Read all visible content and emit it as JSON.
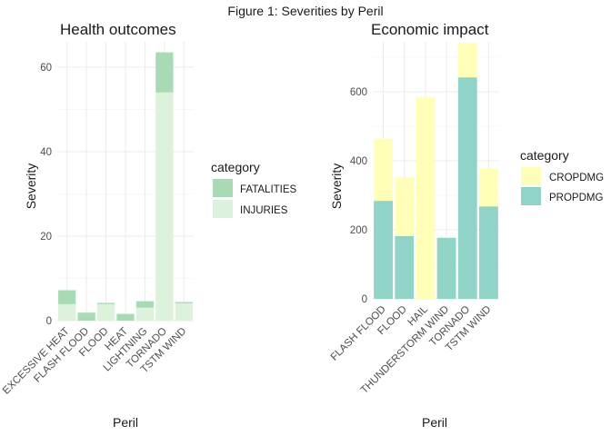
{
  "figure_title": "Figure 1: Severities by Peril",
  "colors": {
    "fatalities": "#a8dbb4",
    "injuries": "#ddf2dc",
    "cropdmg": "#ffffb8",
    "propdmg": "#8fd4c6"
  },
  "chart_data": [
    {
      "type": "bar",
      "stacked": true,
      "title": "Health outcomes",
      "xlabel": "Peril",
      "ylabel": "Severity",
      "categories": [
        "EXCESSIVE HEAT",
        "FLASH FLOOD",
        "FLOOD",
        "HEAT",
        "LIGHTNING",
        "TORNADO",
        "TSTM WIND"
      ],
      "series": [
        {
          "name": "FATALITIES",
          "values": [
            3.3,
            1.9,
            0.3,
            1.6,
            1.5,
            9.5,
            0.3
          ],
          "color": "#a8dbb4"
        },
        {
          "name": "INJURIES",
          "values": [
            3.9,
            0.0,
            3.9,
            0.0,
            3.1,
            54.0,
            4.1
          ],
          "color": "#ddf2dc"
        }
      ],
      "stack_order": [
        "INJURIES",
        "FATALITIES"
      ],
      "ylim": [
        0,
        66
      ],
      "yticks": [
        0,
        20,
        40,
        60
      ],
      "legend": {
        "title": "category",
        "position": "right",
        "entries": [
          "FATALITIES",
          "INJURIES"
        ]
      },
      "grid": true
    },
    {
      "type": "bar",
      "stacked": true,
      "title": "Economic impact",
      "xlabel": "Peril",
      "ylabel": "Severity",
      "categories": [
        "FLASH FLOOD",
        "FLOOD",
        "HAIL",
        "THUNDERSTORM WIND",
        "TORNADO",
        "TSTM WIND"
      ],
      "series": [
        {
          "name": "CROPDMG",
          "values": [
            180,
            170,
            585,
            0,
            100,
            110
          ],
          "color": "#ffffb8"
        },
        {
          "name": "PROPDMG",
          "values": [
            284,
            182,
            0,
            177,
            642,
            268
          ],
          "color": "#8fd4c6"
        }
      ],
      "stack_order": [
        "PROPDMG",
        "CROPDMG"
      ],
      "ylim": [
        0,
        745
      ],
      "yticks": [
        0,
        200,
        400,
        600
      ],
      "legend": {
        "title": "category",
        "position": "right",
        "entries": [
          "CROPDMG",
          "PROPDMG"
        ]
      },
      "grid": true
    }
  ]
}
